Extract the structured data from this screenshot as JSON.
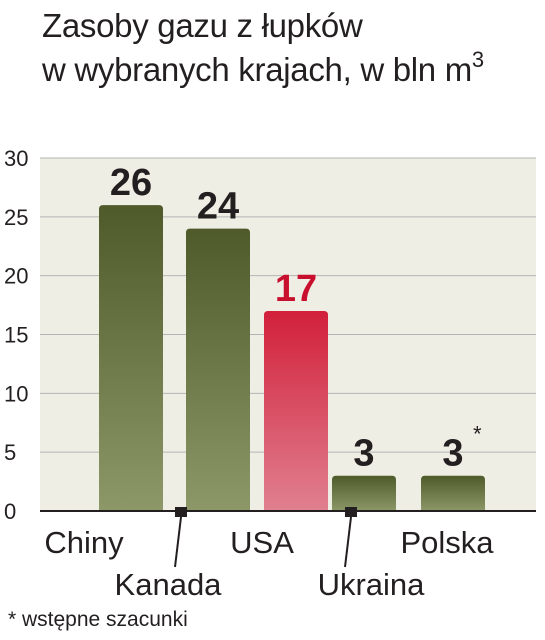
{
  "title": {
    "line1": "Zasoby gazu z łupków",
    "line2": "w wybranych krajach, w bln m",
    "line2_sup": "3"
  },
  "chart_data": {
    "type": "bar",
    "categories": [
      "Chiny",
      "Kanada",
      "USA",
      "Ukraina",
      "Polska"
    ],
    "values": [
      26,
      24,
      17,
      3,
      3
    ],
    "value_labels": [
      "26",
      "24",
      "17",
      "3",
      "3"
    ],
    "value_markers": [
      "",
      "",
      "",
      "",
      "*"
    ],
    "highlight": [
      "none",
      "none",
      "accent",
      "none",
      "none"
    ],
    "yticks": [
      "0",
      "5",
      "10",
      "15",
      "20",
      "25",
      "30"
    ],
    "ylim": [
      0,
      30
    ],
    "grid": true,
    "colors": {
      "bar_top": "#4f5a2a",
      "bar_bottom": "#8c9868",
      "accent_top": "#d2203a",
      "accent_bottom": "#e08090",
      "accent_label": "#c8102e",
      "label": "#231f20",
      "grid": "#b4b4b4",
      "panel": "#eeeee4"
    }
  },
  "footnote": "* wstępne szacunki"
}
